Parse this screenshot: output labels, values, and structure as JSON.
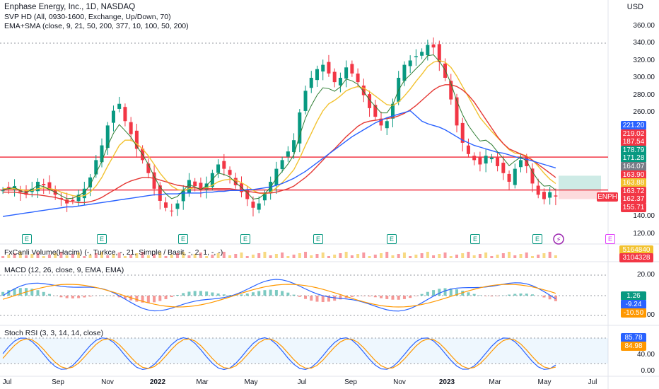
{
  "header": {
    "title": "Enphase Energy, Inc., 1D, NASDAQ",
    "indicator1": "SVP HD (All, 0930-1600, Exchange, Up/Down, 70)",
    "indicator2": "EMA+SMA (close, 9, 21, 50, 200, 377, 10, 100, 50, 200)",
    "currency": "USD"
  },
  "volume_title": "FxCanli Volume(Hacim) (-, Turkce, -, 21, Simple / Basit, -, 2, 1, -, -)",
  "macd_title": "MACD (12, 26, close, 9, EMA, EMA)",
  "stoch_title": "Stoch RSI (3, 3, 14, 14, close)",
  "symbol_tag": "ENPH",
  "earnings_label": "E",
  "colors": {
    "up": "#089981",
    "down": "#f23645",
    "ema_fast": "#f2c230",
    "ema_mid": "#2e7d32",
    "ema_slow": "#e53935",
    "sma200": "#2962ff",
    "hline": "#f23645"
  },
  "chart_data": [
    {
      "type": "line",
      "title": "Enphase Energy, Inc., 1D, NASDAQ",
      "ylabel": "USD",
      "ylim": [
        110,
        370
      ],
      "y_ticks": [
        "360.00",
        "340.00",
        "320.00",
        "300.00",
        "280.00",
        "260.00",
        "140.00",
        "120.00"
      ],
      "x_ticks": [
        "Jul",
        "Sep",
        "Nov",
        "2022",
        "Mar",
        "May",
        "Jul",
        "Sep",
        "Nov",
        "2023",
        "Mar",
        "May",
        "Jul"
      ],
      "horizontal_levels": [
        208.5,
        170.5
      ],
      "dashed_level": 340,
      "price_labels": [
        {
          "text": "221.20",
          "color": "#2962ff"
        },
        {
          "text": "219.02",
          "color": "#f23645"
        },
        {
          "text": "187.54",
          "color": "#f23645"
        },
        {
          "text": "178.79",
          "color": "#089981"
        },
        {
          "text": "171.28",
          "color": "#089981"
        },
        {
          "text": "164.07",
          "color": "#787b86"
        },
        {
          "text": "163.90",
          "color": "#f23645"
        },
        {
          "text": "163.88",
          "color": "#f2c230"
        },
        {
          "text": "163.72",
          "color": "#f23645"
        },
        {
          "text": "162.37",
          "color": "#f23645"
        },
        {
          "text": "155.71",
          "color": "#f23645"
        }
      ],
      "series": [
        {
          "name": "",
          "values": [
            170,
            172,
            175,
            168,
            165,
            172,
            180,
            176,
            170,
            165,
            160,
            155,
            158,
            165,
            172,
            185,
            205,
            222,
            245,
            262,
            270,
            250,
            235,
            218,
            205,
            190,
            172,
            158,
            150,
            146,
            155,
            170,
            182,
            175,
            170,
            178,
            190,
            200,
            195,
            188,
            176,
            168,
            160,
            150,
            155,
            166,
            180,
            195,
            205,
            215,
            228,
            260,
            285,
            300,
            310,
            315,
            305,
            295,
            300,
            312,
            305,
            295,
            280,
            265,
            255,
            245,
            250,
            270,
            300,
            315,
            320,
            325,
            330,
            338,
            335,
            318,
            300,
            275,
            245,
            225,
            212,
            205,
            200,
            210,
            208,
            198,
            190,
            180,
            195,
            205,
            198,
            178,
            165,
            160,
            168,
            163
          ]
        },
        {
          "name": "",
          "values": [
            172,
            172,
            172,
            171,
            170,
            170,
            172,
            173,
            172,
            171,
            168,
            166,
            164,
            163,
            164,
            168,
            175,
            185,
            198,
            210,
            222,
            228,
            228,
            224,
            218,
            210,
            200,
            190,
            182,
            175,
            171,
            170,
            172,
            173,
            172,
            173,
            176,
            180,
            182,
            183,
            182,
            179,
            175,
            170,
            167,
            166,
            168,
            173,
            179,
            186,
            194,
            207,
            222,
            236,
            250,
            262,
            270,
            274,
            279,
            285,
            288,
            290,
            288,
            284,
            279,
            274,
            269,
            268,
            272,
            279,
            287,
            296,
            304,
            313,
            318,
            320,
            318,
            312,
            302,
            290,
            278,
            266,
            254,
            246,
            238,
            231,
            224,
            217,
            213,
            212,
            210,
            205,
            198,
            190,
            183,
            178
          ]
        },
        {
          "name": "",
          "values": [
            168,
            168,
            168,
            167,
            166,
            165,
            165,
            164,
            163,
            162,
            160,
            158,
            157,
            156,
            156,
            157,
            159,
            162,
            166,
            170,
            174,
            178,
            181,
            183,
            185,
            185,
            184,
            182,
            180,
            178,
            176,
            175,
            174,
            173,
            172,
            172,
            172,
            172,
            172,
            172,
            171,
            170,
            169,
            168,
            167,
            167,
            167,
            168,
            170,
            172,
            175,
            180,
            185,
            191,
            198,
            205,
            212,
            218,
            225,
            232,
            238,
            244,
            248,
            250,
            251,
            252,
            253,
            254,
            256,
            259,
            263,
            268,
            274,
            280,
            286,
            290,
            292,
            292,
            290,
            286,
            280,
            272,
            262,
            252,
            242,
            232,
            224,
            218,
            215,
            212,
            209,
            205,
            200,
            195,
            190,
            185
          ]
        },
        {
          "name": "",
          "values": [
            140,
            141,
            142,
            143,
            144,
            145,
            146,
            147,
            148,
            149,
            150,
            151,
            151,
            152,
            153,
            154,
            155,
            156,
            157,
            158,
            159,
            160,
            161,
            162,
            163,
            164,
            165,
            165,
            166,
            166,
            166,
            167,
            167,
            167,
            167,
            168,
            168,
            169,
            169,
            170,
            170,
            170,
            171,
            171,
            172,
            173,
            174,
            176,
            178,
            181,
            184,
            188,
            192,
            197,
            202,
            207,
            212,
            217,
            222,
            227,
            232,
            236,
            240,
            244,
            248,
            251,
            254,
            256,
            258,
            260,
            262,
            256,
            250,
            247,
            245,
            243,
            240,
            236,
            232,
            228,
            225,
            222,
            220,
            218,
            216,
            214,
            213,
            211,
            209,
            207,
            206,
            204,
            202,
            200,
            198,
            196
          ]
        }
      ]
    },
    {
      "type": "line",
      "title": "MACD (12, 26, close, 9, EMA, EMA)",
      "y_ticks": [
        "20.00",
        "-20.00"
      ],
      "price_labels": [
        {
          "text": "1.26",
          "color": "#089981"
        },
        {
          "text": "-9.24",
          "color": "#2962ff"
        },
        {
          "text": "-10.50",
          "color": "#ff9800"
        }
      ]
    },
    {
      "type": "line",
      "title": "Stoch RSI (3, 3, 14, 14, close)",
      "y_ticks": [
        "40.00",
        "0.00"
      ],
      "price_labels": [
        {
          "text": "85.78",
          "color": "#2962ff"
        },
        {
          "text": "84.98",
          "color": "#ff9800"
        }
      ]
    },
    {
      "type": "bar",
      "title": "FxCanli Volume(Hacim) (-, Turkce, -, 21, Simple / Basit, -, 2, 1, -, -)",
      "price_labels": [
        {
          "text": "5164840",
          "color": "#f2c230"
        },
        {
          "text": "3104328",
          "color": "#f23645"
        }
      ]
    }
  ]
}
